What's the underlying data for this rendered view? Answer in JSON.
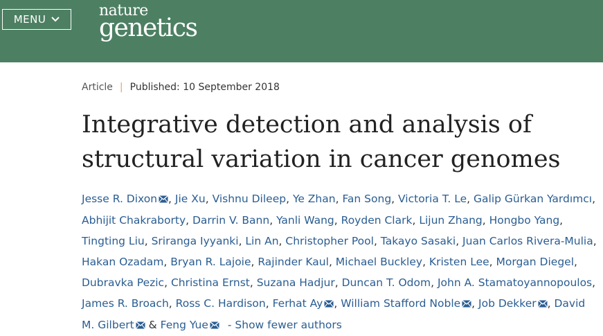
{
  "header": {
    "menu_label": "MENU",
    "logo_top": "nature",
    "logo_bottom": "genetics",
    "bg_color": "#4d8063"
  },
  "article": {
    "type": "Article",
    "published": "Published: 10 September 2018",
    "title_line1": "Integrative detection and analysis of",
    "title_line2": "structural variation in cancer genomes"
  },
  "authors": [
    "Jesse R. Dixon",
    "Jie Xu",
    "Vishnu Dileep",
    "Ye Zhan",
    "Fan Song",
    "Victoria T. Le",
    "Galip Gürkan Yardımcı",
    "Abhijit Chakraborty",
    "Darrin V. Bann",
    "Yanli Wang",
    "Royden Clark",
    "Lijun Zhang",
    "Hongbo Yang",
    "Tingting Liu",
    "Sriranga Iyyanki",
    "Lin An",
    "Christopher Pool",
    "Takayo Sasaki",
    "Juan Carlos Rivera-Mulia",
    "Hakan Ozadam",
    "Bryan R. Lajoie",
    "Rajinder Kaul",
    "Michael Buckley",
    "Kristen Lee",
    "Morgan Diegel",
    "Dubravka Pezic",
    "Christina Ernst",
    "Suzana Hadjur",
    "Duncan T. Odom",
    "John A. Stamatoyannopoulos",
    "James R. Broach",
    "Ross C. Hardison",
    "Ferhat Ay",
    "William Stafford Noble",
    "Job Dekker",
    "David M. Gilbert",
    "Feng Yue"
  ],
  "corresponding_authors": [
    "Jesse R. Dixon",
    "Ferhat Ay",
    "William Stafford Noble",
    "Job Dekker",
    "David M. Gilbert",
    "Feng Yue"
  ],
  "show_fewer": "- Show fewer authors",
  "icons": {
    "menu_chevron": "chevron-down-icon",
    "email": "mail-icon"
  }
}
